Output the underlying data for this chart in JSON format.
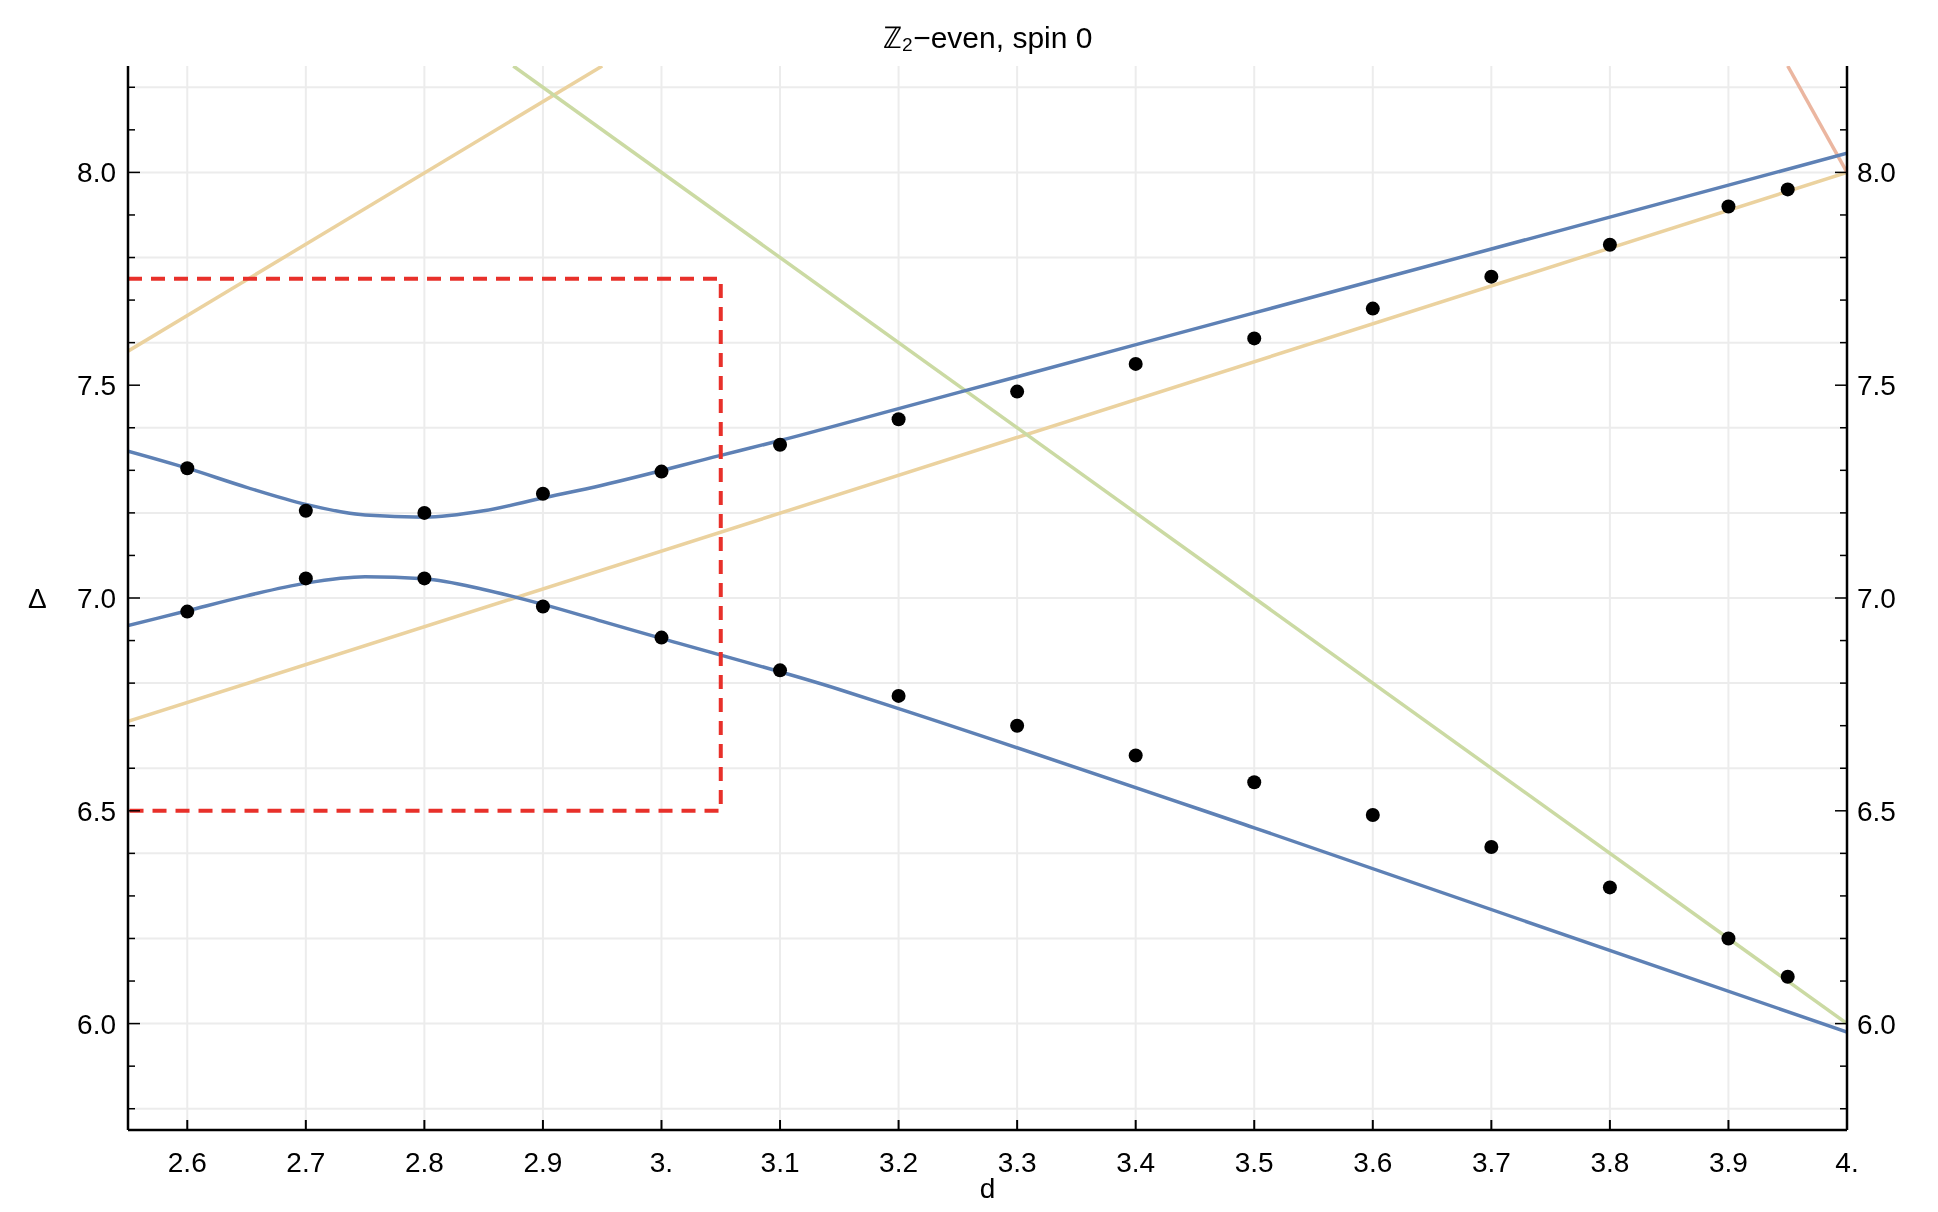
{
  "chart_data": {
    "type": "line",
    "title": "ℤ₂−even, spin 0",
    "xlabel": "d",
    "ylabel": "Δ",
    "xlim": [
      2.55,
      4.0
    ],
    "xticks": [
      2.6,
      2.7,
      2.8,
      2.9,
      {
        "value": 3.0,
        "label": "3."
      },
      3.1,
      3.2,
      3.3,
      3.4,
      3.5,
      3.6,
      3.7,
      3.8,
      3.9,
      {
        "value": 4.0,
        "label": "4."
      }
    ],
    "ylim": [
      5.75,
      8.25
    ],
    "yticks": [
      {
        "value": 5.8,
        "label": null
      },
      {
        "value": 5.9,
        "label": null
      },
      {
        "value": 6.0,
        "label": "6.0"
      },
      {
        "value": 6.1,
        "label": null
      },
      {
        "value": 6.2,
        "label": null
      },
      {
        "value": 6.3,
        "label": null
      },
      {
        "value": 6.4,
        "label": null
      },
      {
        "value": 6.5,
        "label": "6.5"
      },
      {
        "value": 6.6,
        "label": null
      },
      {
        "value": 6.7,
        "label": null
      },
      {
        "value": 6.8,
        "label": null
      },
      {
        "value": 6.9,
        "label": null
      },
      {
        "value": 7.0,
        "label": "7.0"
      },
      {
        "value": 7.1,
        "label": null
      },
      {
        "value": 7.2,
        "label": null
      },
      {
        "value": 7.3,
        "label": null
      },
      {
        "value": 7.4,
        "label": null
      },
      {
        "value": 7.5,
        "label": "7.5"
      },
      {
        "value": 7.6,
        "label": null
      },
      {
        "value": 7.7,
        "label": null
      },
      {
        "value": 7.8,
        "label": null
      },
      {
        "value": 7.9,
        "label": null
      },
      {
        "value": 8.0,
        "label": "8.0"
      },
      {
        "value": 8.1,
        "label": null
      },
      {
        "value": 8.2,
        "label": null
      }
    ],
    "y2lim": [
      5.75,
      8.25
    ],
    "y2ticks": [
      {
        "value": 5.8,
        "label": null
      },
      {
        "value": 5.9,
        "label": null
      },
      {
        "value": 6.0,
        "label": "6.0"
      },
      {
        "value": 6.1,
        "label": null
      },
      {
        "value": 6.2,
        "label": null
      },
      {
        "value": 6.3,
        "label": null
      },
      {
        "value": 6.4,
        "label": null
      },
      {
        "value": 6.5,
        "label": "6.5"
      },
      {
        "value": 6.6,
        "label": null
      },
      {
        "value": 6.7,
        "label": null
      },
      {
        "value": 6.8,
        "label": null
      },
      {
        "value": 6.9,
        "label": null
      },
      {
        "value": 7.0,
        "label": "7.0"
      },
      {
        "value": 7.1,
        "label": null
      },
      {
        "value": 7.2,
        "label": null
      },
      {
        "value": 7.3,
        "label": null
      },
      {
        "value": 7.4,
        "label": null
      },
      {
        "value": 7.5,
        "label": "7.5"
      },
      {
        "value": 7.6,
        "label": null
      },
      {
        "value": 7.7,
        "label": null
      },
      {
        "value": 7.8,
        "label": null
      },
      {
        "value": 7.9,
        "label": null
      },
      {
        "value": 8.0,
        "label": "8.0"
      },
      {
        "value": 8.1,
        "label": null
      },
      {
        "value": 8.2,
        "label": null
      }
    ],
    "grid": true,
    "series": [
      {
        "color": "#ebd29f",
        "x": [
          2.55,
          4.0
        ],
        "values": [
          6.71,
          8.0
        ]
      },
      {
        "color": "#ebd29f",
        "x": [
          2.55,
          2.95
        ],
        "values": [
          7.58,
          8.25
        ]
      },
      {
        "color": "#cbdaa3",
        "x": [
          2.875,
          4.0
        ],
        "values": [
          8.25,
          6.0
        ]
      },
      {
        "color": "#ebb6a0",
        "x": [
          3.95,
          4.0
        ],
        "values": [
          8.25,
          8.0
        ]
      },
      {
        "color": "#5e81b5",
        "x": [
          2.55,
          2.6,
          2.65,
          2.7,
          2.75,
          2.8,
          2.85,
          2.9,
          2.95,
          3.05,
          3.1,
          3.2,
          3.3,
          3.5,
          3.7,
          4.0
        ],
        "values": [
          7.345,
          7.305,
          7.26,
          7.22,
          7.195,
          7.19,
          7.205,
          7.235,
          7.265,
          7.335,
          7.37,
          7.445,
          7.52,
          7.67,
          7.82,
          8.045
        ]
      },
      {
        "color": "#5e81b5",
        "x": [
          2.55,
          2.6,
          2.65,
          2.7,
          2.75,
          2.8,
          2.85,
          2.9,
          2.95,
          3.0,
          3.15,
          3.2,
          3.5,
          4.0
        ],
        "values": [
          6.935,
          6.97,
          7.005,
          7.035,
          7.05,
          7.045,
          7.02,
          6.985,
          6.945,
          6.905,
          6.785,
          6.74,
          6.46,
          5.98
        ]
      },
      {
        "color": "#e8302a",
        "line_style": "dashed",
        "x": [
          2.55,
          3.05,
          3.05,
          2.55
        ],
        "values": [
          7.75,
          7.75,
          6.5,
          6.5
        ]
      },
      {
        "type": "scatter",
        "color": "#000000",
        "marker": "circle",
        "x": [
          2.6,
          2.7,
          2.8,
          2.9,
          3.0,
          3.1,
          3.2,
          3.3,
          3.4,
          3.5,
          3.6,
          3.7,
          3.8,
          3.9,
          3.95
        ],
        "values": [
          7.305,
          7.205,
          7.2,
          7.245,
          7.297,
          7.36,
          7.42,
          7.485,
          7.55,
          7.61,
          7.68,
          7.755,
          7.83,
          7.92,
          7.96
        ]
      },
      {
        "type": "scatter",
        "color": "#000000",
        "marker": "circle",
        "x": [
          2.6,
          2.7,
          2.8,
          2.9,
          3.0,
          3.1,
          3.2,
          3.3,
          3.4,
          3.5,
          3.6,
          3.7,
          3.8,
          3.9,
          3.95
        ],
        "values": [
          6.968,
          7.046,
          7.046,
          6.98,
          6.907,
          6.83,
          6.77,
          6.7,
          6.63,
          6.567,
          6.49,
          6.415,
          6.32,
          6.2,
          6.11
        ]
      }
    ]
  }
}
